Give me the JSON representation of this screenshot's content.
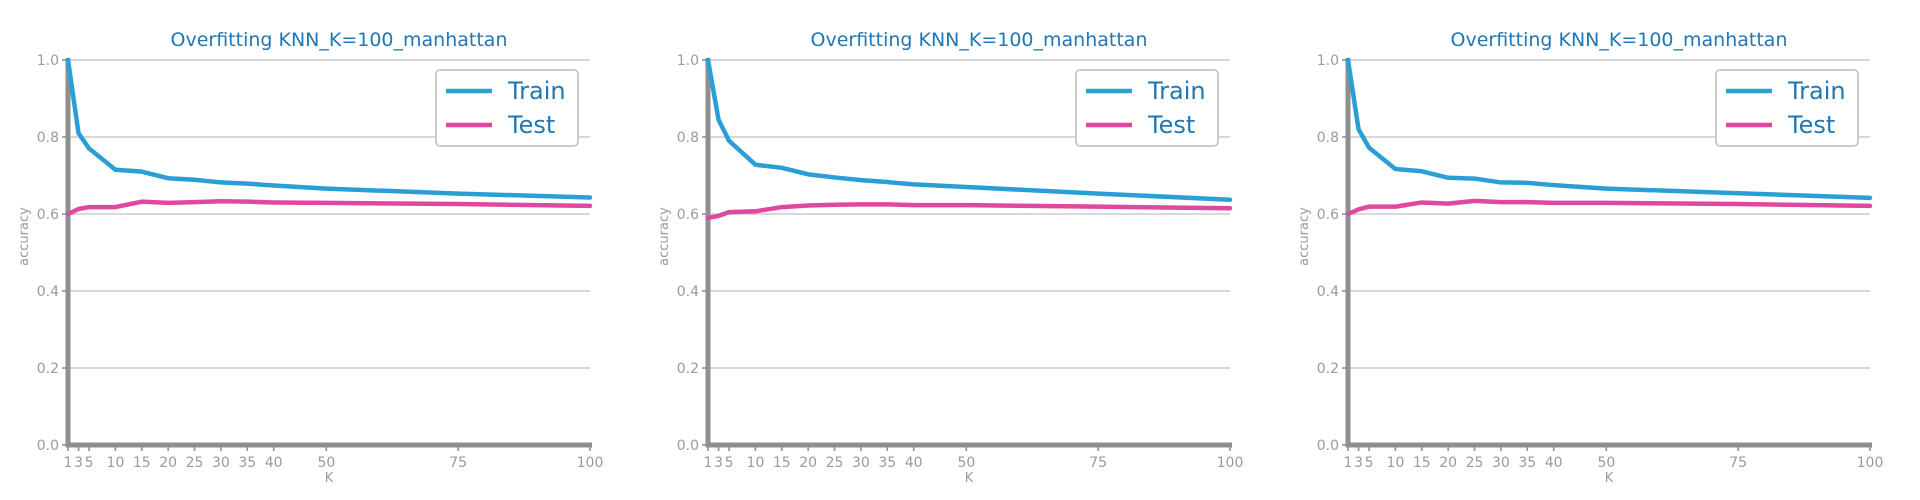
{
  "colors": {
    "train": "#2a9fd6",
    "test": "#e0479e",
    "title": "#1f77b4",
    "axis": "#8f8f8f",
    "grid": "#cccccc",
    "tick_text": "#9a9a9a"
  },
  "chart_data": [
    {
      "type": "line",
      "title": "Overfitting KNN_K=100_manhattan",
      "xlabel": "K",
      "ylabel": "accuracy",
      "xlim": [
        1,
        100
      ],
      "ylim": [
        0.0,
        1.0
      ],
      "xticks": [
        1,
        3,
        5,
        10,
        15,
        20,
        25,
        30,
        35,
        40,
        50,
        75,
        100
      ],
      "yticks": [
        0.0,
        0.2,
        0.4,
        0.6,
        0.8,
        1.0
      ],
      "ytick_labels": [
        "0.0",
        "0.2",
        "0.4",
        "0.6",
        "0.8",
        "1.0"
      ],
      "grid": "horizontal",
      "legend": "top-right",
      "x": [
        1,
        3,
        5,
        10,
        15,
        20,
        25,
        30,
        35,
        40,
        50,
        75,
        100
      ],
      "series": [
        {
          "name": "Train",
          "values": [
            1.0,
            0.81,
            0.77,
            0.715,
            0.71,
            0.693,
            0.689,
            0.682,
            0.679,
            0.674,
            0.666,
            0.653,
            0.643
          ]
        },
        {
          "name": "Test",
          "values": [
            0.6,
            0.613,
            0.618,
            0.618,
            0.632,
            0.629,
            0.631,
            0.633,
            0.632,
            0.63,
            0.629,
            0.626,
            0.621
          ]
        }
      ]
    },
    {
      "type": "line",
      "title": "Overfitting KNN_K=100_manhattan",
      "xlabel": "K",
      "ylabel": "accuracy",
      "xlim": [
        1,
        100
      ],
      "ylim": [
        0.0,
        1.0
      ],
      "xticks": [
        1,
        3,
        5,
        10,
        15,
        20,
        25,
        30,
        35,
        40,
        50,
        75,
        100
      ],
      "yticks": [
        0.0,
        0.2,
        0.4,
        0.6,
        0.8,
        1.0
      ],
      "ytick_labels": [
        "0.0",
        "0.2",
        "0.4",
        "0.6",
        "0.8",
        "1.0"
      ],
      "grid": "horizontal",
      "legend": "top-right",
      "x": [
        1,
        3,
        5,
        10,
        15,
        20,
        25,
        30,
        35,
        40,
        50,
        75,
        100
      ],
      "series": [
        {
          "name": "Train",
          "values": [
            1.0,
            0.845,
            0.79,
            0.728,
            0.72,
            0.703,
            0.695,
            0.688,
            0.683,
            0.677,
            0.67,
            0.653,
            0.637
          ]
        },
        {
          "name": "Test",
          "values": [
            0.59,
            0.595,
            0.605,
            0.607,
            0.618,
            0.622,
            0.624,
            0.625,
            0.625,
            0.623,
            0.623,
            0.619,
            0.615
          ]
        }
      ]
    },
    {
      "type": "line",
      "title": "Overfitting KNN_K=100_manhattan",
      "xlabel": "K",
      "ylabel": "accuracy",
      "xlim": [
        1,
        100
      ],
      "ylim": [
        0.0,
        1.0
      ],
      "xticks": [
        1,
        3,
        5,
        10,
        15,
        20,
        25,
        30,
        35,
        40,
        50,
        75,
        100
      ],
      "yticks": [
        0.0,
        0.2,
        0.4,
        0.6,
        0.8,
        1.0
      ],
      "ytick_labels": [
        "0.0",
        "0.2",
        "0.4",
        "0.6",
        "0.8",
        "1.0"
      ],
      "grid": "horizontal",
      "legend": "top-right",
      "x": [
        1,
        3,
        5,
        10,
        15,
        20,
        25,
        30,
        35,
        40,
        50,
        75,
        100
      ],
      "series": [
        {
          "name": "Train",
          "values": [
            1.0,
            0.82,
            0.772,
            0.717,
            0.711,
            0.694,
            0.692,
            0.682,
            0.681,
            0.675,
            0.666,
            0.654,
            0.642
          ]
        },
        {
          "name": "Test",
          "values": [
            0.6,
            0.612,
            0.619,
            0.619,
            0.63,
            0.627,
            0.634,
            0.631,
            0.631,
            0.629,
            0.629,
            0.626,
            0.621
          ]
        }
      ]
    }
  ]
}
